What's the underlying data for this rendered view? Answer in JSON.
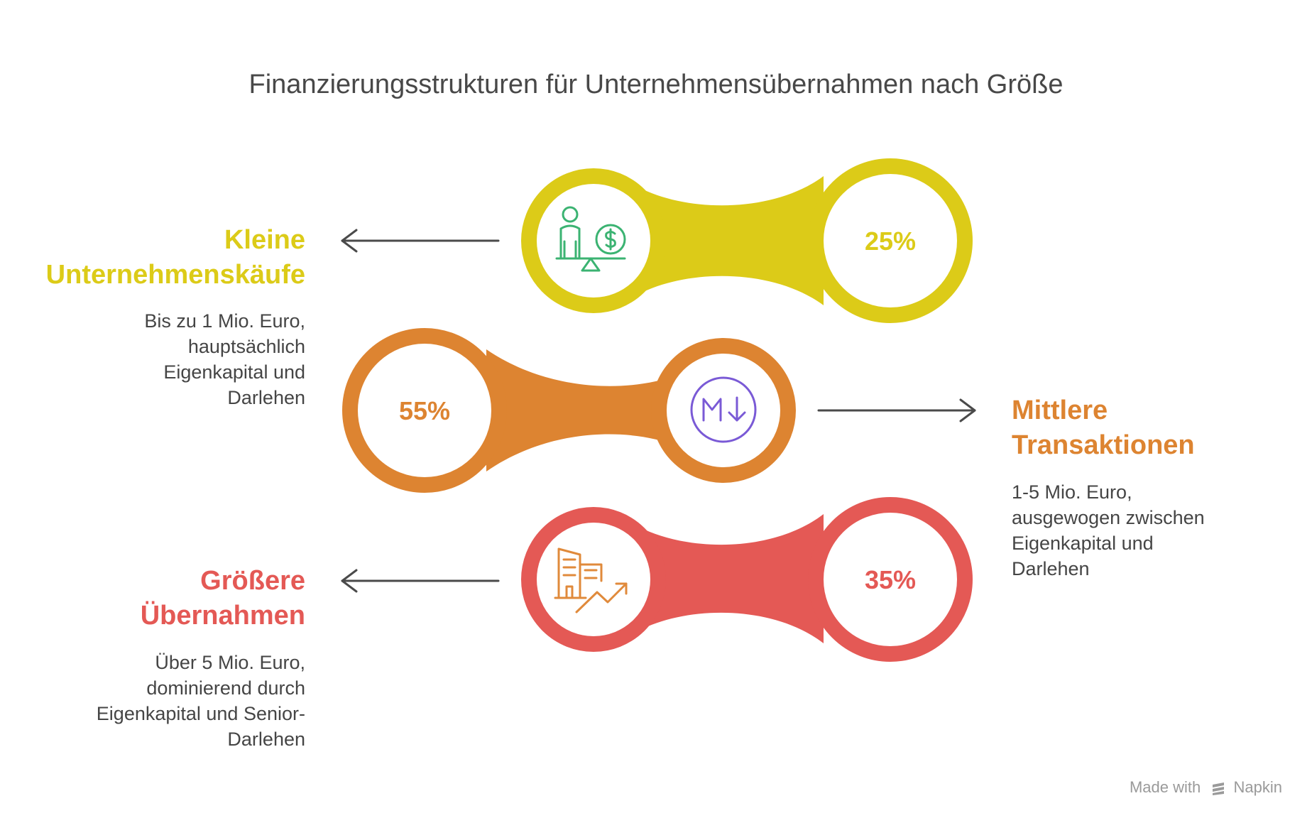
{
  "title": "Finanzierungsstrukturen für Unternehmensübernahmen nach Größe",
  "colors": {
    "yellow": "#dccb18",
    "orange": "#dd8431",
    "red": "#e45955",
    "green_icon": "#3bb372",
    "purple_icon": "#7a5ad6",
    "orange_icon": "#e08a3b",
    "text_dark": "#454545"
  },
  "items": [
    {
      "title_line1": "Kleine",
      "title_line2": "Unternehmenskäufe",
      "desc_lines": [
        "Bis zu 1 Mio. Euro,",
        "hauptsächlich",
        "Eigenkapital und",
        "Darlehen"
      ],
      "percent": "25%",
      "icon": "person-balance-money-icon"
    },
    {
      "title_line1": "Mittlere",
      "title_line2": "Transaktionen",
      "desc_lines": [
        "1-5 Mio. Euro,",
        "ausgewogen zwischen",
        "Eigenkapital und",
        "Darlehen"
      ],
      "percent": "55%",
      "icon": "markdown-down-icon"
    },
    {
      "title_line1": "Größere",
      "title_line2": "Übernahmen",
      "desc_lines": [
        "Über 5 Mio. Euro,",
        "dominierend durch",
        "Eigenkapital und Senior-",
        "Darlehen"
      ],
      "percent": "35%",
      "icon": "buildings-growth-icon"
    }
  ],
  "footer": {
    "made_with": "Made with",
    "brand": "Napkin"
  }
}
